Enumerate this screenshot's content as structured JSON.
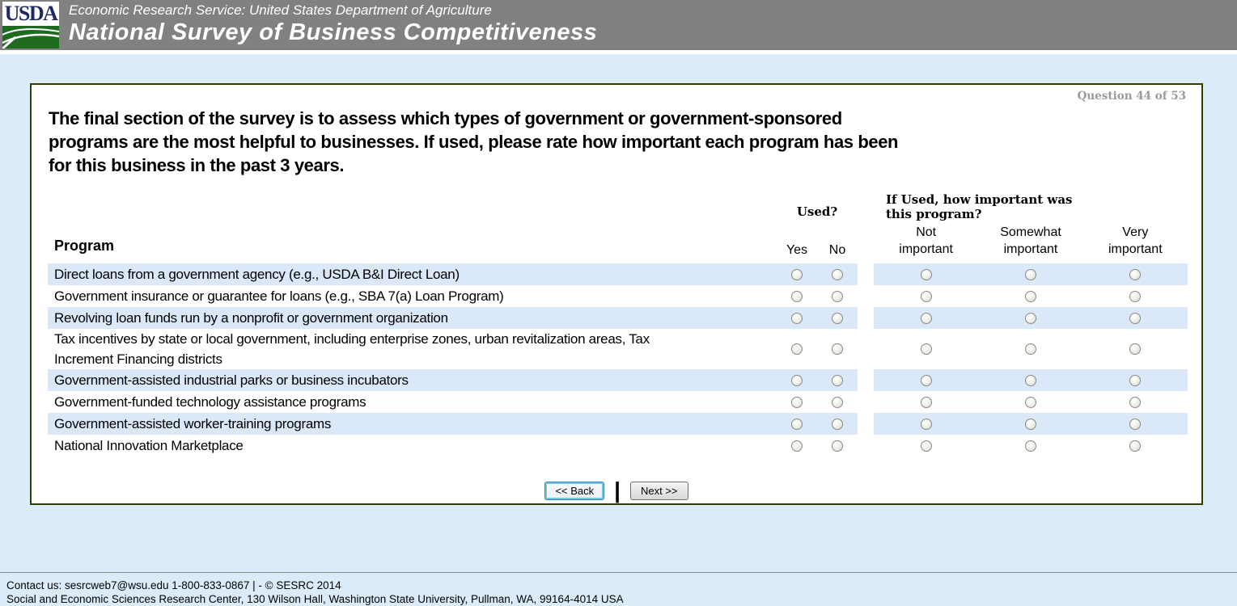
{
  "colors": {
    "masthead_bg": "#818181",
    "page_bg": "#dcebfa",
    "row_shade": "#dbe8f9",
    "panel_border": "#333d02",
    "focus_ring": "#6fc8e0",
    "logo_green": "#1e6b1f",
    "logo_navy": "#1b2a66",
    "counter_gray": "#9a9a9a"
  },
  "header": {
    "logo_text": "USDA",
    "agency_line": "Economic Research Service: United States Department of Agriculture",
    "survey_title": "National Survey of Business Competitiveness"
  },
  "question": {
    "counter": "Question 44 of 53",
    "lines": [
      "The final section of the survey is to assess which types of government or government-sponsored",
      "programs are the most helpful to businesses. If used, please rate how important each program has been",
      "for this business in the past 3 years."
    ]
  },
  "table": {
    "program_header": "Program",
    "used_header": "Used?",
    "importance_header": "If Used, how important was this program?",
    "used_options": [
      "Yes",
      "No"
    ],
    "importance_options": [
      "Not important",
      "Somewhat important",
      "Very important"
    ],
    "rows": [
      {
        "label": "Direct loans from a government agency (e.g., USDA B&I Direct Loan)",
        "shaded": true
      },
      {
        "label": "Government insurance or guarantee for loans (e.g., SBA 7(a) Loan Program)",
        "shaded": false
      },
      {
        "label": "Revolving loan funds run by a nonprofit or government organization",
        "shaded": true
      },
      {
        "label": "Tax incentives by state or local government, including enterprise zones, urban revitalization areas, Tax Increment Financing districts",
        "shaded": false
      },
      {
        "label": "Government-assisted industrial parks or business incubators",
        "shaded": true
      },
      {
        "label": "Government-funded technology assistance programs",
        "shaded": false
      },
      {
        "label": "Government-assisted worker-training programs",
        "shaded": true
      },
      {
        "label": "National Innovation Marketplace",
        "shaded": false
      }
    ]
  },
  "buttons": {
    "back_label": "<< Back",
    "divider": "|",
    "next_label": "Next >>"
  },
  "footer": {
    "contact_line": "Contact us: sesrcweb7@wsu.edu 1-800-833-0867 | - © SESRC 2014",
    "address_line": "Social and Economic Sciences Research Center, 130 Wilson Hall, Washington State University, Pullman, WA, 99164-4014 USA"
  }
}
